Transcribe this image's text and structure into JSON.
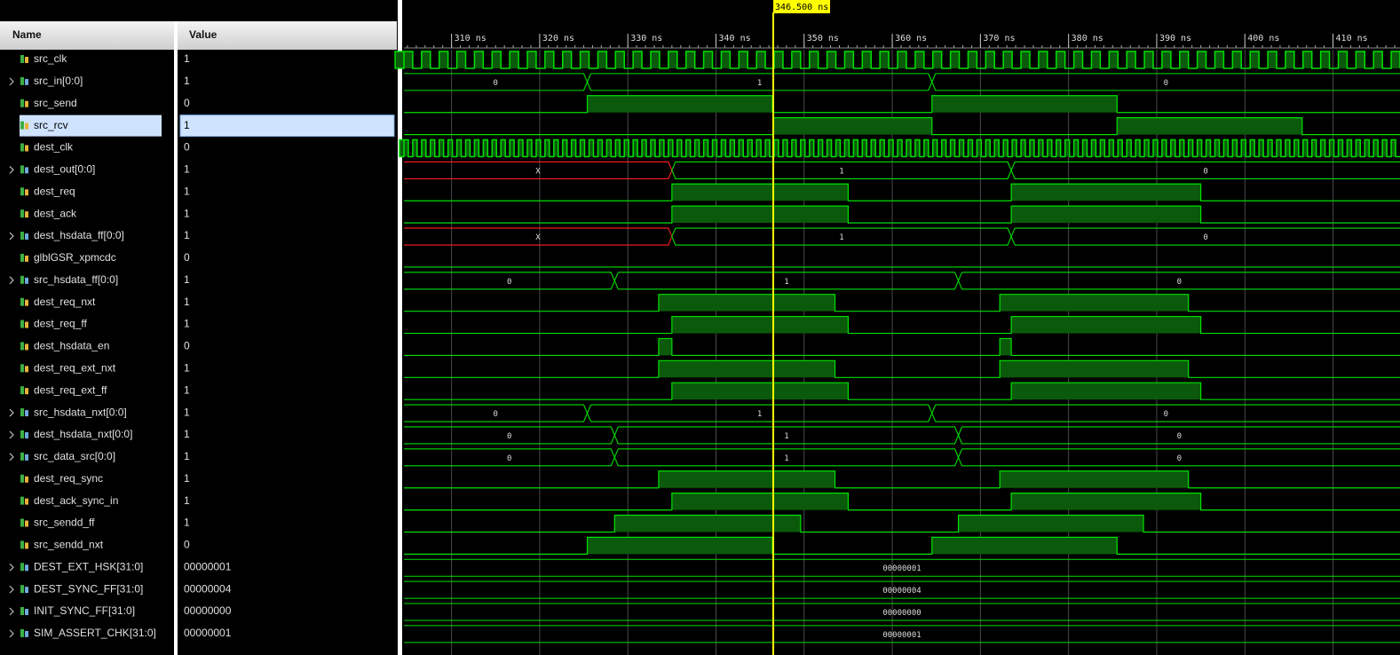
{
  "header": {
    "name": "Name",
    "value": "Value"
  },
  "time_axis": {
    "xlim": [
      304.6,
      417.6
    ],
    "ticks": [
      {
        "value": 310,
        "label": "310 ns"
      },
      {
        "value": 320,
        "label": "320 ns"
      },
      {
        "value": 330,
        "label": "330 ns"
      },
      {
        "value": 340,
        "label": "340 ns"
      },
      {
        "value": 350,
        "label": "350 ns"
      },
      {
        "value": 360,
        "label": "360 ns"
      },
      {
        "value": 370,
        "label": "370 ns"
      },
      {
        "value": 380,
        "label": "380 ns"
      },
      {
        "value": 390,
        "label": "390 ns"
      },
      {
        "value": 400,
        "label": "400 ns"
      },
      {
        "value": 410,
        "label": "410 ns"
      }
    ],
    "cursor": {
      "value": 346.5,
      "label": "346.500 ns"
    }
  },
  "selected": 3,
  "signals": [
    {
      "name": "src_clk",
      "value": "1"
    },
    {
      "name": "src_in[0:0]",
      "value": "1",
      "wave_labels": [
        "0",
        "1",
        "0"
      ]
    },
    {
      "name": "src_send",
      "value": "0"
    },
    {
      "name": "src_rcv",
      "value": "1"
    },
    {
      "name": "dest_clk",
      "value": "0"
    },
    {
      "name": "dest_out[0:0]",
      "value": "1",
      "wave_labels": [
        "X",
        "1",
        "0"
      ]
    },
    {
      "name": "dest_req",
      "value": "1"
    },
    {
      "name": "dest_ack",
      "value": "1"
    },
    {
      "name": "dest_hsdata_ff[0:0]",
      "value": "1",
      "wave_labels": [
        "X",
        "1",
        "0"
      ]
    },
    {
      "name": "glblGSR_xpmcdc",
      "value": "0"
    },
    {
      "name": "src_hsdata_ff[0:0]",
      "value": "1",
      "wave_labels": [
        "0",
        "1",
        "0"
      ]
    },
    {
      "name": "dest_req_nxt",
      "value": "1"
    },
    {
      "name": "dest_req_ff",
      "value": "1"
    },
    {
      "name": "dest_hsdata_en",
      "value": "0"
    },
    {
      "name": "dest_req_ext_nxt",
      "value": "1"
    },
    {
      "name": "dest_req_ext_ff",
      "value": "1"
    },
    {
      "name": "src_hsdata_nxt[0:0]",
      "value": "1",
      "wave_labels": [
        "0",
        "1",
        "0"
      ]
    },
    {
      "name": "dest_hsdata_nxt[0:0]",
      "value": "1",
      "wave_labels": [
        "0",
        "1",
        "0"
      ]
    },
    {
      "name": "src_data_src[0:0]",
      "value": "1",
      "wave_labels": [
        "0",
        "1",
        "0"
      ]
    },
    {
      "name": "dest_req_sync",
      "value": "1"
    },
    {
      "name": "dest_ack_sync_in",
      "value": "1"
    },
    {
      "name": "src_sendd_ff",
      "value": "1"
    },
    {
      "name": "src_sendd_nxt",
      "value": "0"
    },
    {
      "name": "DEST_EXT_HSK[31:0]",
      "value": "00000001",
      "wave_labels": [
        "00000001"
      ]
    },
    {
      "name": "DEST_SYNC_FF[31:0]",
      "value": "00000004",
      "wave_labels": [
        "00000004"
      ]
    },
    {
      "name": "INIT_SYNC_FF[31:0]",
      "value": "00000000",
      "wave_labels": [
        "00000000"
      ]
    },
    {
      "name": "SIM_ASSERT_CHK[31:0]",
      "value": "00000001",
      "wave_labels": [
        "00000001"
      ]
    }
  ]
}
